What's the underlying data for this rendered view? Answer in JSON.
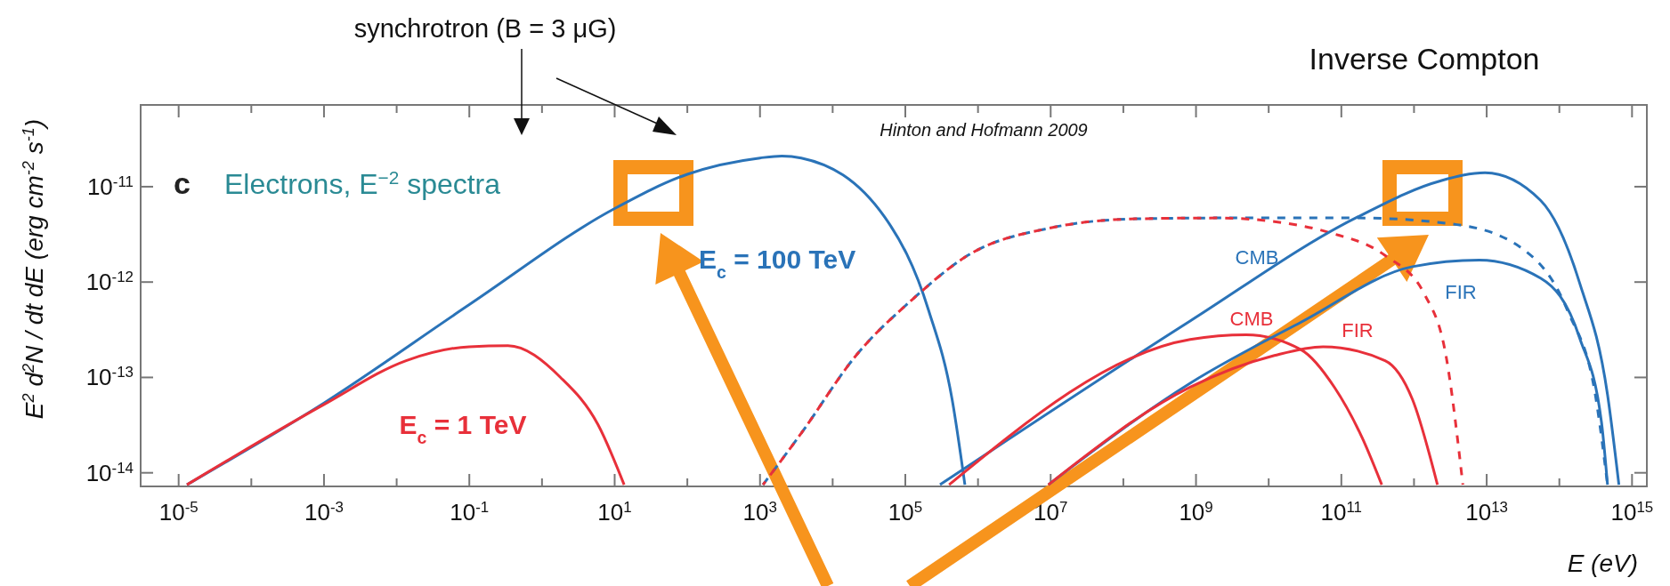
{
  "chart_data": {
    "type": "line",
    "log": "xy",
    "grid": false,
    "ylabel": "E$^{2}$ d$^{2}$N / dt dE  (erg cm$^{-2}$ s$^{-1}$)",
    "xlabel": "E (eV)",
    "xlim": [
      3e-06,
      1600000000000000.0
    ],
    "ylim": [
      7.2e-15,
      7.2e-11
    ],
    "xticks": [
      {
        "value": 1e-05,
        "label": "10$^{-5}$"
      },
      {
        "value": 0.0001,
        "label": null
      },
      {
        "value": 0.001,
        "label": "10$^{-3}$"
      },
      {
        "value": 0.01,
        "label": null
      },
      {
        "value": 0.1,
        "label": "10$^{-1}$"
      },
      {
        "value": 1,
        "label": null
      },
      {
        "value": 10.0,
        "label": "10$^{1}$"
      },
      {
        "value": 100.0,
        "label": null
      },
      {
        "value": 1000.0,
        "label": "10$^{3}$"
      },
      {
        "value": 10000.0,
        "label": null
      },
      {
        "value": 100000.0,
        "label": "10$^{5}$"
      },
      {
        "value": 1000000.0,
        "label": null
      },
      {
        "value": 10000000.0,
        "label": "10$^{7}$"
      },
      {
        "value": 100000000.0,
        "label": null
      },
      {
        "value": 1000000000.0,
        "label": "10$^{9}$"
      },
      {
        "value": 10000000000.0,
        "label": null
      },
      {
        "value": 100000000000.0,
        "label": "10$^{11}$"
      },
      {
        "value": 1000000000000.0,
        "label": null
      },
      {
        "value": 10000000000000.0,
        "label": "10$^{13}$"
      },
      {
        "value": 100000000000000.0,
        "label": null
      },
      {
        "value": 1000000000000000.0,
        "label": "10$^{15}$"
      }
    ],
    "yticks": [
      {
        "value": 1e-14,
        "label": "10$^{-14}$"
      },
      {
        "value": 1e-13,
        "label": "10$^{-13}$"
      },
      {
        "value": 1e-12,
        "label": "10$^{-12}$"
      },
      {
        "value": 1e-11,
        "label": "10$^{-11}$"
      }
    ],
    "series": [
      {
        "color": "#2a73b8",
        "x": [
          1.3e-05,
          0.001,
          0.1,
          10.0,
          100.0,
          1000.0,
          2000.0,
          3700.0,
          52000.0,
          210000.0,
          440000.0,
          660000.0
        ],
        "values": [
          7.5e-15,
          5.4e-14,
          5.8e-13,
          5.9e-12,
          1.35e-11,
          2e-11,
          2.1e-11,
          2e-11,
          4.8e-12,
          5e-13,
          5.9e-14,
          7.5e-15
        ]
      },
      {
        "color": "#e8303a",
        "x": [
          1.3e-05,
          0.001,
          0.0135,
          0.1,
          0.34,
          1.8,
          5.9,
          13.5
        ],
        "values": [
          7.5e-15,
          5.2e-14,
          1.5e-13,
          2.1e-13,
          2.15e-13,
          1e-13,
          3.2e-14,
          7.5e-15
        ]
      },
      {
        "color": "#2a73b8",
        "line_style": "dashed",
        "x": [
          1100.0,
          3700.0,
          21000.0,
          126000.0,
          720000.0,
          10000000.0,
          145000000.0,
          2000000000.0,
          166000000000.0,
          3900000000000.0,
          32000000000000.0,
          130000000000000.0,
          320000000000000.0,
          460000000000000.0
        ],
        "values": [
          7.5e-15,
          2.6e-14,
          1.7e-13,
          6.6e-13,
          1.9e-12,
          3.7e-12,
          4.6e-12,
          4.7e-12,
          4.7e-12,
          4e-12,
          2.2e-12,
          5e-13,
          5.9e-14,
          7.5e-15
        ]
      },
      {
        "color": "#e8303a",
        "line_style": "dashed",
        "x": [
          1100.0,
          3700.0,
          21000.0,
          126000.0,
          720000.0,
          10000000.0,
          145000000.0,
          2000000000.0,
          12000000000.0,
          69000000000.0,
          400000000000.0,
          1400000000000.0,
          2750000000000.0,
          4700000000000.0
        ],
        "values": [
          7.5e-15,
          2.6e-14,
          1.7e-13,
          6.6e-13,
          1.9e-12,
          3.7e-12,
          4.6e-12,
          4.7e-12,
          4.3e-12,
          3.3e-12,
          1.9e-12,
          7.4e-13,
          1.7e-13,
          7.5e-15
        ]
      },
      {
        "color": "#2a73b8",
        "x": [
          300000.0,
          830000000.0,
          166000000000.0,
          2300000000000.0,
          9500000000000.0,
          55000000000000.0,
          190000000000000.0,
          460000000000000.0,
          660000000000000.0
        ],
        "values": [
          7.5e-15,
          3.9e-13,
          4.8e-12,
          1.15e-11,
          1.4e-11,
          7.2e-12,
          9.8e-13,
          6.6e-14,
          7.5e-15
        ]
      },
      {
        "color": "#e8303a",
        "x": [
          400000.0,
          830000000.0,
          4900000000.0,
          28000000000.0,
          81000000000.0,
          195000000000.0,
          360000000000.0
        ],
        "values": [
          7.5e-15,
          2.5e-13,
          2.8e-13,
          1.95e-13,
          7.8e-14,
          2.3e-14,
          7.5e-15
        ]
      },
      {
        "color": "#2a73b8",
        "x": [
          9300000.0,
          830000000.0,
          28000000000.0,
          950000000000.0,
          7900000000000.0,
          55000000000000.0,
          190000000000000.0,
          380000000000000.0,
          460000000000000.0
        ],
        "values": [
          7.5e-15,
          8.7e-14,
          3.8e-13,
          1.45e-12,
          1.7e-12,
          1.1e-12,
          2.6e-13,
          3.4e-14,
          7.5e-15
        ]
      },
      {
        "color": "#e8303a",
        "x": [
          9300000.0,
          830000000.0,
          12000000000.0,
          56000000000.0,
          400000000000.0,
          950000000000.0,
          2100000000000.0
        ],
        "values": [
          7.5e-15,
          7.9e-14,
          1.7e-13,
          2.1e-13,
          1.5e-13,
          5.9e-14,
          7.5e-15
        ]
      }
    ],
    "annotations": [
      "synchrotron (B = 3 μG)",
      "Inverse Compton",
      "Hinton and Hofmann 2009",
      "c",
      "Electrons, E$^{−2}$ spectra",
      "E$_{c}$ = 100 TeV",
      "E$_{c}$ = 1 TeV",
      "CMB",
      "CMB",
      "FIR",
      "FIR"
    ]
  }
}
